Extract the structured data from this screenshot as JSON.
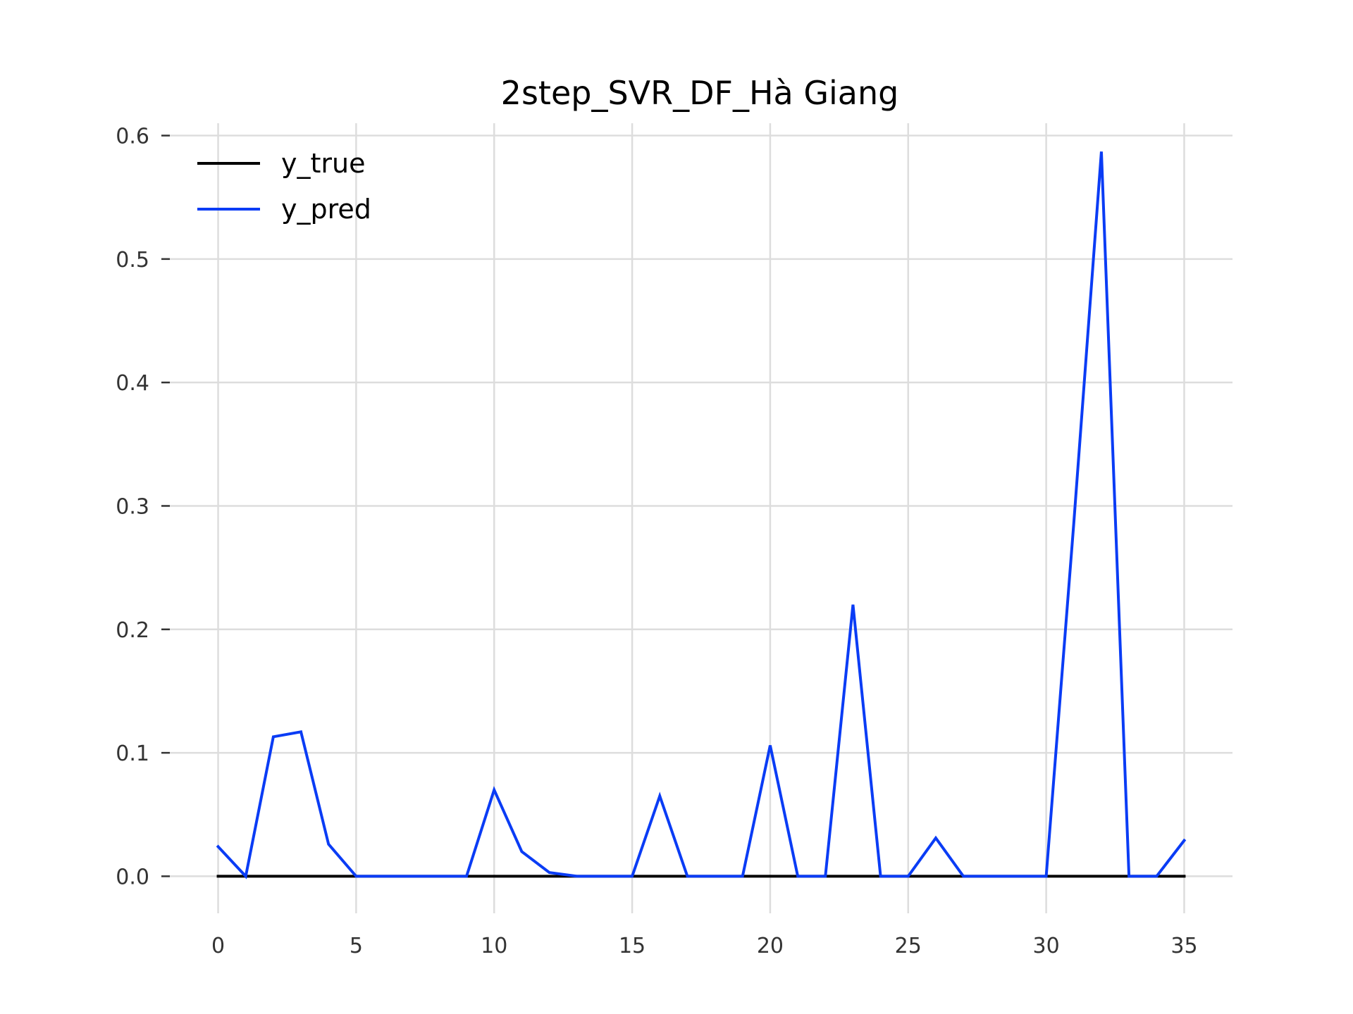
{
  "chart_data": {
    "type": "line",
    "title": "2step_SVR_DF_Hà Giang",
    "xlabel": "",
    "ylabel": "",
    "x": [
      0,
      1,
      2,
      3,
      4,
      5,
      6,
      7,
      8,
      9,
      10,
      11,
      12,
      13,
      14,
      15,
      16,
      17,
      18,
      19,
      20,
      21,
      22,
      23,
      24,
      25,
      26,
      27,
      28,
      29,
      30,
      31,
      32,
      33,
      34,
      35
    ],
    "xlim": [
      -1.75,
      36.75
    ],
    "ylim": [
      -0.03,
      0.61
    ],
    "x_ticks": [
      0,
      5,
      10,
      15,
      20,
      25,
      30,
      35
    ],
    "y_ticks": [
      0.0,
      0.1,
      0.2,
      0.3,
      0.4,
      0.5,
      0.6
    ],
    "x_tick_labels": [
      "0",
      "5",
      "10",
      "15",
      "20",
      "25",
      "30",
      "35"
    ],
    "y_tick_labels": [
      "0.0",
      "0.1",
      "0.2",
      "0.3",
      "0.4",
      "0.5",
      "0.6"
    ],
    "grid": true,
    "legend_position": "top-left",
    "series": [
      {
        "name": "y_true",
        "color": "#000000",
        "values": [
          0,
          0,
          0,
          0,
          0,
          0,
          0,
          0,
          0,
          0,
          0,
          0,
          0,
          0,
          0,
          0,
          0,
          0,
          0,
          0,
          0,
          0,
          0,
          0,
          0,
          0,
          0,
          0,
          0,
          0,
          0,
          0,
          0,
          0,
          0,
          0
        ]
      },
      {
        "name": "y_pred",
        "color": "#0a3cf5",
        "values": [
          0.024,
          0.0,
          0.113,
          0.117,
          0.026,
          0.0,
          0.0,
          0.0,
          0.0,
          0.0,
          0.07,
          0.02,
          0.003,
          0.0,
          0.0,
          0.0,
          0.065,
          0.0,
          0.0,
          0.0,
          0.106,
          0.0,
          0.0,
          0.22,
          0.0,
          0.0,
          0.031,
          0.0,
          0.0,
          0.0,
          0.0,
          0.286,
          0.587,
          0.0,
          0.0,
          0.029
        ]
      }
    ]
  }
}
